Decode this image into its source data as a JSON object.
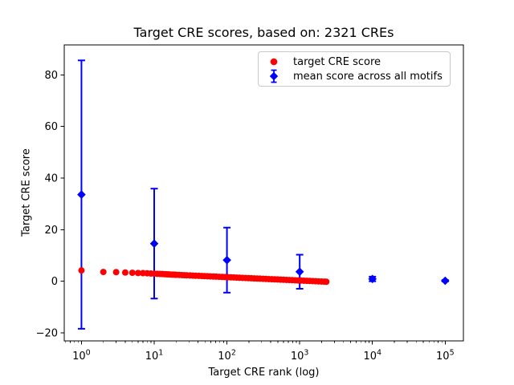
{
  "chart_data": {
    "type": "scatter",
    "title": "Target CRE scores, based on: 2321 CREs",
    "xlabel": "Target CRE rank (log)",
    "ylabel": "Target CRE score",
    "x_scale": "log",
    "xlim": [
      0.58,
      178000
    ],
    "ylim": [
      -23.1,
      91.6
    ],
    "x_major_tick_base": "10",
    "x_major_tick_exponents": [
      0,
      1,
      2,
      3,
      4,
      5
    ],
    "y_ticks": [
      -20,
      0,
      20,
      40,
      60,
      80
    ],
    "grid": false,
    "legend_position": "upper right",
    "n_cres": 2321,
    "series": [
      {
        "name": "target CRE score",
        "type": "scatter",
        "marker": "circle",
        "color": "#ff0000",
        "n_points_total": 2321,
        "points": [
          [
            1,
            4.2
          ],
          [
            2,
            3.6
          ],
          [
            3,
            3.55
          ],
          [
            4,
            3.4
          ],
          [
            5,
            3.3
          ],
          [
            6,
            3.2
          ],
          [
            7,
            3.15
          ],
          [
            8,
            3.1
          ],
          [
            9,
            3.0
          ],
          [
            10,
            2.95
          ],
          [
            11,
            2.9
          ],
          [
            12,
            2.85
          ],
          [
            13,
            2.8
          ],
          [
            14,
            2.75
          ],
          [
            15,
            2.7
          ],
          [
            16,
            2.65
          ],
          [
            17,
            2.6
          ],
          [
            18,
            2.58
          ],
          [
            19,
            2.55
          ],
          [
            20,
            2.5
          ],
          [
            22,
            2.45
          ],
          [
            24,
            2.4
          ],
          [
            26,
            2.35
          ],
          [
            28,
            2.32
          ],
          [
            31,
            2.26
          ],
          [
            34,
            2.21
          ],
          [
            37,
            2.16
          ],
          [
            41,
            2.1
          ],
          [
            45,
            2.05
          ],
          [
            49,
            2.0
          ],
          [
            54,
            1.95
          ],
          [
            59,
            1.9
          ],
          [
            65,
            1.84
          ],
          [
            71,
            1.79
          ],
          [
            78,
            1.74
          ],
          [
            86,
            1.69
          ],
          [
            94,
            1.64
          ],
          [
            103,
            1.58
          ],
          [
            113,
            1.53
          ],
          [
            124,
            1.48
          ],
          [
            136,
            1.43
          ],
          [
            149,
            1.38
          ],
          [
            164,
            1.32
          ],
          [
            180,
            1.27
          ],
          [
            197,
            1.22
          ],
          [
            216,
            1.17
          ],
          [
            237,
            1.11
          ],
          [
            260,
            1.06
          ],
          [
            285,
            1.01
          ],
          [
            313,
            0.96
          ],
          [
            343,
            0.9
          ],
          [
            376,
            0.85
          ],
          [
            413,
            0.8
          ],
          [
            453,
            0.75
          ],
          [
            497,
            0.7
          ],
          [
            545,
            0.64
          ],
          [
            598,
            0.59
          ],
          [
            656,
            0.54
          ],
          [
            719,
            0.49
          ],
          [
            789,
            0.43
          ],
          [
            865,
            0.38
          ],
          [
            949,
            0.33
          ],
          [
            1041,
            0.28
          ],
          [
            1142,
            0.22
          ],
          [
            1253,
            0.17
          ],
          [
            1374,
            0.12
          ],
          [
            1507,
            0.07
          ],
          [
            1653,
            0.02
          ],
          [
            1813,
            -0.04
          ],
          [
            1989,
            -0.09
          ],
          [
            2181,
            -0.14
          ],
          [
            2321,
            -0.18
          ]
        ]
      },
      {
        "name": "mean score across all motifs",
        "type": "errorbar",
        "marker": "diamond",
        "color": "#0000ff",
        "points": [
          {
            "x": 1,
            "mean": 33.6,
            "err": 52.0
          },
          {
            "x": 10,
            "mean": 14.6,
            "err": 21.3
          },
          {
            "x": 100,
            "mean": 8.2,
            "err": 12.6
          },
          {
            "x": 1000,
            "mean": 3.7,
            "err": 6.6
          },
          {
            "x": 10000,
            "mean": 0.9,
            "err": 0.9
          },
          {
            "x": 100000,
            "mean": 0.2,
            "err": 0.25
          }
        ]
      }
    ]
  }
}
